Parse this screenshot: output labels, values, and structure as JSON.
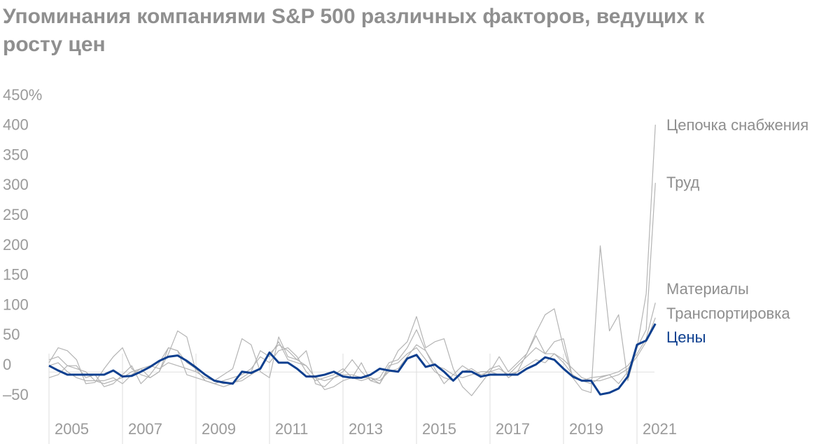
{
  "chart_data": {
    "type": "line",
    "title": "Упоминания компаниями S&P 500 различных факторов, ведущих к росту цен",
    "x": [
      2005,
      2005.25,
      2005.5,
      2005.75,
      2006,
      2006.25,
      2006.5,
      2006.75,
      2007,
      2007.25,
      2007.5,
      2007.75,
      2008,
      2008.25,
      2008.5,
      2008.75,
      2009,
      2009.25,
      2009.5,
      2009.75,
      2010,
      2010.25,
      2010.5,
      2010.75,
      2011,
      2011.25,
      2011.5,
      2011.75,
      2012,
      2012.25,
      2012.5,
      2012.75,
      2013,
      2013.25,
      2013.5,
      2013.75,
      2014,
      2014.25,
      2014.5,
      2014.75,
      2015,
      2015.25,
      2015.5,
      2015.75,
      2016,
      2016.25,
      2016.5,
      2016.75,
      2017,
      2017.25,
      2017.5,
      2017.75,
      2018,
      2018.25,
      2018.5,
      2018.75,
      2019,
      2019.25,
      2019.5,
      2019.75,
      2020,
      2020.25,
      2020.5,
      2020.75,
      2021,
      2021.25,
      2021.5
    ],
    "series": [
      {
        "name": "Цепочка снабжения",
        "color": "#b4b4b4",
        "values": [
          5,
          30,
          25,
          10,
          -30,
          -28,
          -5,
          15,
          30,
          -5,
          -15,
          -20,
          -10,
          20,
          58,
          48,
          -10,
          -20,
          -25,
          -15,
          -5,
          45,
          35,
          -10,
          -20,
          48,
          15,
          10,
          25,
          -30,
          -35,
          -20,
          -10,
          10,
          -10,
          -25,
          -30,
          -5,
          25,
          40,
          82,
          30,
          40,
          45,
          -5,
          -35,
          -50,
          -30,
          -10,
          15,
          -10,
          5,
          20,
          55,
          85,
          95,
          30,
          -20,
          -40,
          -45,
          200,
          58,
          85,
          -25,
          30,
          120,
          402
        ]
      },
      {
        "name": "Труд",
        "color": "#b4b4b4",
        "values": [
          10,
          15,
          0,
          0,
          -20,
          -15,
          -35,
          -30,
          -15,
          0,
          -30,
          -15,
          5,
          30,
          25,
          -15,
          -20,
          -25,
          -30,
          -35,
          -30,
          -20,
          -10,
          25,
          15,
          40,
          10,
          5,
          0,
          -20,
          -40,
          -35,
          -25,
          -20,
          5,
          -25,
          -20,
          5,
          10,
          30,
          60,
          25,
          -5,
          -30,
          -15,
          0,
          -10,
          -20,
          -5,
          0,
          -20,
          -10,
          20,
          50,
          20,
          40,
          45,
          -20,
          -25,
          -30,
          -20,
          -15,
          -30,
          -10,
          30,
          60,
          305
        ]
      },
      {
        "name": "Материалы",
        "color": "#b4b4b4",
        "values": [
          -20,
          -15,
          0,
          -5,
          -10,
          -25,
          -25,
          -20,
          -30,
          -15,
          -5,
          -20,
          -10,
          30,
          25,
          5,
          -5,
          -25,
          -30,
          -25,
          -20,
          -15,
          -5,
          15,
          5,
          25,
          30,
          15,
          -10,
          -25,
          -20,
          -15,
          -5,
          -20,
          -25,
          -20,
          -30,
          0,
          5,
          20,
          30,
          10,
          -10,
          -20,
          -25,
          -10,
          -5,
          -15,
          -10,
          -5,
          -15,
          0,
          15,
          30,
          20,
          20,
          5,
          -15,
          -25,
          -20,
          -18,
          -15,
          -10,
          0,
          20,
          45,
          105
        ]
      },
      {
        "name": "Транспортировка",
        "color": "#b4b4b4",
        "values": [
          0,
          5,
          -10,
          -20,
          -25,
          -25,
          -30,
          -25,
          -20,
          -10,
          -5,
          0,
          -5,
          5,
          0,
          -5,
          -10,
          -20,
          -25,
          -30,
          -28,
          -25,
          -15,
          -5,
          20,
          35,
          25,
          10,
          0,
          -20,
          -25,
          -20,
          -15,
          -15,
          -20,
          -20,
          -25,
          -10,
          -5,
          15,
          35,
          25,
          0,
          -5,
          -15,
          -20,
          -15,
          -10,
          -10,
          -15,
          -15,
          -10,
          0,
          10,
          5,
          20,
          10,
          -5,
          -20,
          -25,
          -25,
          -20,
          -15,
          -5,
          15,
          40,
          80
        ]
      },
      {
        "name": "Цены",
        "color": "#0d3f8f",
        "values": [
          0,
          -8,
          -15,
          -15,
          -15,
          -15,
          -15,
          -8,
          -18,
          -17,
          -10,
          -2,
          8,
          15,
          17,
          8,
          -3,
          -15,
          -25,
          -28,
          -30,
          -10,
          -12,
          -5,
          22,
          5,
          5,
          -5,
          -18,
          -18,
          -15,
          -10,
          -18,
          -20,
          -20,
          -15,
          -5,
          -8,
          -10,
          12,
          18,
          -2,
          2,
          -10,
          -25,
          -10,
          -10,
          -18,
          -15,
          -15,
          -15,
          -15,
          -5,
          2,
          14,
          10,
          -5,
          -18,
          -25,
          -25,
          -48,
          -45,
          -38,
          -18,
          35,
          42,
          70
        ]
      }
    ],
    "xlim": [
      2005,
      2022
    ],
    "xticks": [
      2005,
      2007,
      2009,
      2011,
      2013,
      2015,
      2017,
      2019,
      2021
    ],
    "ylim": [
      -50,
      450
    ],
    "yticks": [
      {
        "value": -50,
        "label": "–50"
      },
      0,
      50,
      100,
      150,
      200,
      250,
      300,
      350,
      {
        "value": 450,
        "label": "450%"
      },
      400
    ]
  }
}
